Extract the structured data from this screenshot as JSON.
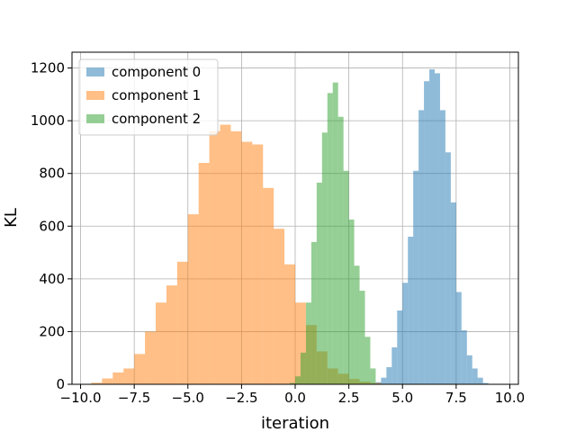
{
  "chart_data": {
    "type": "bar",
    "title": "",
    "xlabel": "iteration",
    "ylabel": "KL",
    "xlim": [
      -10.4,
      10.4
    ],
    "ylim": [
      0,
      1260
    ],
    "grid": true,
    "legend_position": "top-left",
    "xticks": [
      -10.0,
      -7.5,
      -5.0,
      -2.5,
      0.0,
      2.5,
      5.0,
      7.5,
      10.0
    ],
    "xtick_labels": [
      "−10.0",
      "−7.5",
      "−5.0",
      "−2.5",
      "0.0",
      "2.5",
      "5.0",
      "7.5",
      "10.0"
    ],
    "yticks": [
      0,
      200,
      400,
      600,
      800,
      1000,
      1200
    ],
    "ytick_labels": [
      "0",
      "200",
      "400",
      "600",
      "800",
      "1000",
      "1200"
    ],
    "series": [
      {
        "name": "component 0",
        "color": "#1f77b4",
        "opacity": 0.5,
        "bin_width": 0.25,
        "bin_starts": [
          3.75,
          4.0,
          4.25,
          4.5,
          4.75,
          5.0,
          5.25,
          5.5,
          5.75,
          6.0,
          6.25,
          6.5,
          6.75,
          7.0,
          7.25,
          7.5,
          7.75,
          8.0,
          8.25,
          8.5,
          8.75
        ],
        "values": [
          8,
          25,
          65,
          140,
          280,
          385,
          560,
          810,
          1040,
          1150,
          1195,
          1180,
          1040,
          880,
          690,
          350,
          205,
          110,
          60,
          25,
          5
        ]
      },
      {
        "name": "component 1",
        "color": "#ff7f0e",
        "opacity": 0.5,
        "bin_width": 0.5,
        "bin_starts": [
          -9.5,
          -9.0,
          -8.5,
          -8.0,
          -7.5,
          -7.0,
          -6.5,
          -6.0,
          -5.5,
          -5.0,
          -4.5,
          -4.0,
          -3.5,
          -3.0,
          -2.5,
          -2.0,
          -1.5,
          -1.0,
          -0.5,
          0.0,
          0.5,
          1.0,
          1.5,
          2.0,
          2.5,
          3.0,
          3.5
        ],
        "values": [
          6,
          22,
          45,
          60,
          115,
          200,
          310,
          375,
          465,
          645,
          840,
          960,
          985,
          960,
          920,
          910,
          745,
          590,
          455,
          310,
          225,
          125,
          60,
          40,
          20,
          10,
          5
        ]
      },
      {
        "name": "component 2",
        "color": "#2ca02c",
        "opacity": 0.5,
        "bin_width": 0.25,
        "bin_starts": [
          -0.25,
          0.0,
          0.25,
          0.5,
          0.75,
          1.0,
          1.25,
          1.5,
          1.75,
          2.0,
          2.25,
          2.5,
          2.75,
          3.0,
          3.25,
          3.5
        ],
        "values": [
          5,
          30,
          120,
          310,
          540,
          765,
          955,
          1105,
          1145,
          1015,
          810,
          625,
          450,
          355,
          180,
          60
        ]
      }
    ]
  }
}
